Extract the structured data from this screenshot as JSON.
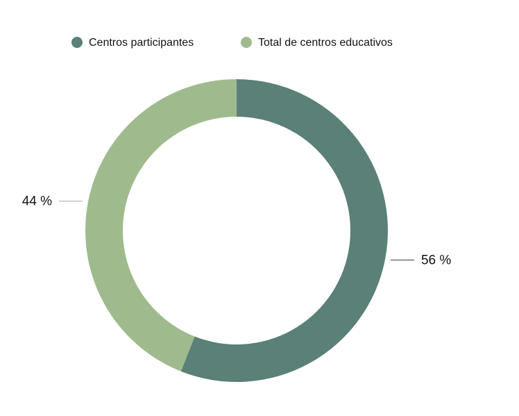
{
  "chart_data": {
    "type": "donut",
    "categories": [
      "Centros participantes",
      "Total de centros educativos"
    ],
    "values": [
      56,
      44
    ],
    "value_labels": [
      "56 %",
      "44 %"
    ],
    "colors": [
      "#5a8077",
      "#9fbb8e"
    ]
  }
}
